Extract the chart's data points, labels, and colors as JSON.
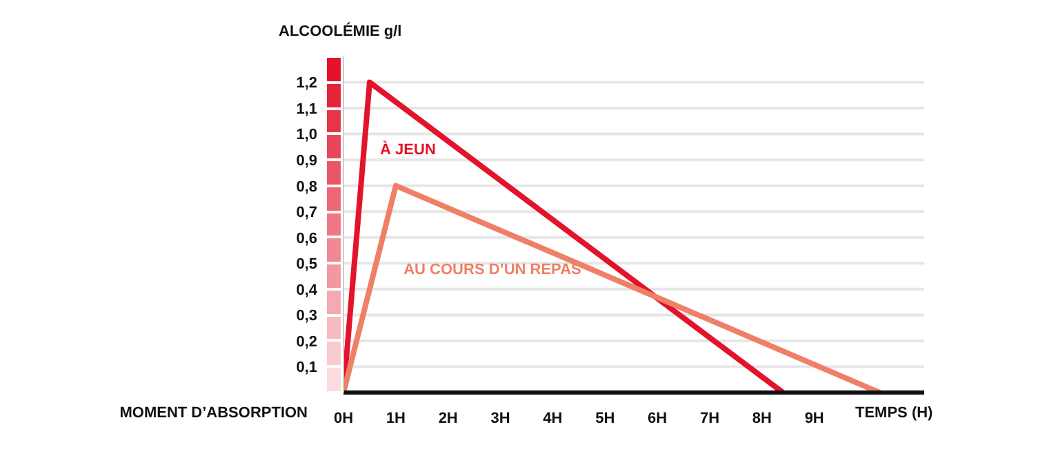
{
  "chart_data": {
    "type": "line",
    "ylabel": "ALCOOLÉMIE g/l",
    "xlabel": "TEMPS (H)",
    "annotations": [
      "MOMENT D’ABSORPTION"
    ],
    "series": [
      {
        "name": "À JEUN",
        "color": "#e3132b",
        "x": [
          0,
          0.5,
          8.4
        ],
        "values": [
          0,
          1.2,
          0
        ]
      },
      {
        "name": "AU COURS D’UN REPAS",
        "color": "#ef8067",
        "x": [
          0,
          1,
          10.25
        ],
        "values": [
          0,
          0.8,
          0
        ]
      }
    ],
    "xlim": [
      0,
      11.1
    ],
    "xticks": [
      {
        "value": 0,
        "label": "0H"
      },
      {
        "value": 1,
        "label": "1H"
      },
      {
        "value": 2,
        "label": "2H"
      },
      {
        "value": 3,
        "label": "3H"
      },
      {
        "value": 4,
        "label": "4H"
      },
      {
        "value": 5,
        "label": "5H"
      },
      {
        "value": 6,
        "label": "6H"
      },
      {
        "value": 7,
        "label": "7H"
      },
      {
        "value": 8,
        "label": "8H"
      },
      {
        "value": 9,
        "label": "9H"
      }
    ],
    "ylim": [
      0,
      1.3
    ],
    "yticks": [
      {
        "value": 0.1,
        "label": "0,1"
      },
      {
        "value": 0.2,
        "label": "0,2"
      },
      {
        "value": 0.3,
        "label": "0,3"
      },
      {
        "value": 0.4,
        "label": "0,4"
      },
      {
        "value": 0.5,
        "label": "0,5"
      },
      {
        "value": 0.6,
        "label": "0,6"
      },
      {
        "value": 0.7,
        "label": "0,7"
      },
      {
        "value": 0.8,
        "label": "0,8"
      },
      {
        "value": 0.9,
        "label": "0,9"
      },
      {
        "value": 1.0,
        "label": "1,0"
      },
      {
        "value": 1.1,
        "label": "1,1"
      },
      {
        "value": 1.2,
        "label": "1,2"
      }
    ],
    "grid": "y",
    "marker": "none",
    "line_style": "solid"
  }
}
